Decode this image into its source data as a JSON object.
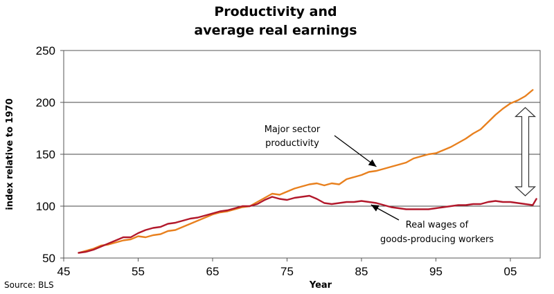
{
  "chart_data": {
    "type": "line",
    "title": [
      "Productivity and",
      "average real earnings"
    ],
    "xlabel": "Year",
    "ylabel": "index relative to 1970",
    "source": "Source: BLS",
    "xlim": [
      1945,
      2009
    ],
    "ylim": [
      50,
      250
    ],
    "x_ticks": [
      1945,
      1955,
      1965,
      1975,
      1985,
      1995,
      2005
    ],
    "x_tick_labels": [
      "45",
      "55",
      "65",
      "75",
      "85",
      "95",
      "05"
    ],
    "y_ticks": [
      50,
      100,
      150,
      200,
      250
    ],
    "y_tick_labels": [
      "50",
      "100",
      "150",
      "200",
      "250"
    ],
    "grid": "horizontal",
    "series": [
      {
        "name": "Major sector productivity",
        "color": "#E8801E",
        "x": [
          1947,
          1948,
          1949,
          1950,
          1951,
          1952,
          1953,
          1954,
          1955,
          1956,
          1957,
          1958,
          1959,
          1960,
          1961,
          1962,
          1963,
          1964,
          1965,
          1966,
          1967,
          1968,
          1969,
          1970,
          1971,
          1972,
          1973,
          1974,
          1975,
          1976,
          1977,
          1978,
          1979,
          1980,
          1981,
          1982,
          1983,
          1984,
          1985,
          1986,
          1987,
          1988,
          1989,
          1990,
          1991,
          1992,
          1993,
          1994,
          1995,
          1996,
          1997,
          1998,
          1999,
          2000,
          2001,
          2002,
          2003,
          2004,
          2005,
          2006,
          2007,
          2008
        ],
        "values": [
          55,
          57,
          59,
          62,
          63,
          65,
          67,
          68,
          71,
          70,
          72,
          73,
          76,
          77,
          80,
          83,
          86,
          89,
          92,
          94,
          95,
          97,
          99,
          100,
          104,
          108,
          112,
          111,
          114,
          117,
          119,
          121,
          122,
          120,
          122,
          121,
          126,
          128,
          130,
          133,
          134,
          136,
          138,
          140,
          142,
          146,
          148,
          150,
          151,
          154,
          157,
          161,
          165,
          170,
          174,
          181,
          188,
          194,
          199,
          202,
          206,
          212
        ]
      },
      {
        "name": "Real wages of goods-producing workers",
        "color": "#B2182B",
        "x": [
          1947,
          1948,
          1949,
          1950,
          1951,
          1952,
          1953,
          1954,
          1955,
          1956,
          1957,
          1958,
          1959,
          1960,
          1961,
          1962,
          1963,
          1964,
          1965,
          1966,
          1967,
          1968,
          1969,
          1970,
          1971,
          1972,
          1973,
          1974,
          1975,
          1976,
          1977,
          1978,
          1979,
          1980,
          1981,
          1982,
          1983,
          1984,
          1985,
          1986,
          1987,
          1988,
          1989,
          1990,
          1991,
          1992,
          1993,
          1994,
          1995,
          1996,
          1997,
          1998,
          1999,
          2000,
          2001,
          2002,
          2003,
          2004,
          2005,
          2006,
          2007,
          2008,
          2008.5
        ],
        "values": [
          55,
          56,
          58,
          61,
          64,
          67,
          70,
          70,
          74,
          77,
          79,
          80,
          83,
          84,
          86,
          88,
          89,
          91,
          93,
          95,
          96,
          98,
          100,
          100,
          102,
          106,
          109,
          107,
          106,
          108,
          109,
          110,
          107,
          103,
          102,
          103,
          104,
          104,
          105,
          104,
          103,
          101,
          99,
          98,
          97,
          97,
          97,
          97,
          98,
          99,
          100,
          101,
          101,
          102,
          102,
          104,
          105,
          104,
          104,
          103,
          102,
          101,
          107
        ]
      }
    ],
    "annotations": [
      {
        "lines": [
          "Major sector",
          "productivity"
        ],
        "points_to": [
          1987,
          138
        ]
      },
      {
        "lines": [
          "Real wages of",
          "goods-producing workers"
        ],
        "points_to": [
          1986,
          102
        ]
      },
      {
        "type": "double-arrow",
        "x": 2007,
        "y_top": 195,
        "y_bottom": 110
      }
    ]
  }
}
